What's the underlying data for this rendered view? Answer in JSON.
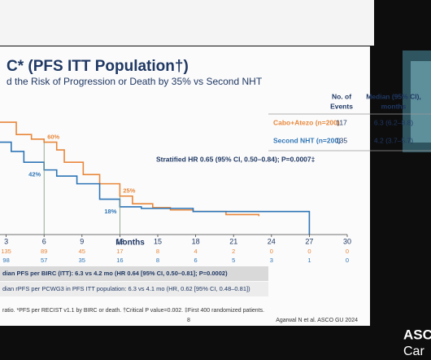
{
  "chart_data": {
    "type": "line",
    "step": true,
    "title": "C* (PFS ITT Population†)",
    "subtitle": "d the Risk of Progression or Death by 35% vs Second NHT",
    "xlabel": "Months",
    "xlim": [
      0,
      30
    ],
    "ylim": [
      0,
      100
    ],
    "xticks": [
      3,
      6,
      9,
      12,
      15,
      18,
      21,
      24,
      27,
      30
    ],
    "series": [
      {
        "name": "Cabo+Atezo (n=200)",
        "color": "#e8873a",
        "x": [
          0,
          3.8,
          5,
          6,
          7,
          7.6,
          9.1,
          10.4,
          12,
          13,
          14.6,
          16,
          17.8,
          20.4,
          23
        ],
        "values": [
          73,
          65,
          62,
          60,
          55,
          47,
          39,
          33,
          25,
          20,
          17.5,
          16,
          15,
          13,
          12
        ],
        "events": "117",
        "median": "6.3 (6.2–8.8)",
        "at_risk": [
          135,
          89,
          45,
          17,
          8,
          4,
          2,
          0,
          0,
          0
        ]
      },
      {
        "name": "Second NHT (n=200)",
        "color": "#2e75b6",
        "x": [
          0,
          3.4,
          4.4,
          6,
          7,
          8.6,
          10.4,
          12,
          13.7,
          17.8,
          27
        ],
        "values": [
          60,
          54,
          47,
          42,
          38,
          33,
          23,
          18,
          17,
          15,
          0
        ],
        "events": "135",
        "median": "4.2 (3.7–5.7)",
        "at_risk": [
          98,
          57,
          35,
          16,
          8,
          6,
          5,
          3,
          1,
          0
        ]
      }
    ],
    "annotations": [
      {
        "series": 0,
        "x": 6,
        "value": 60,
        "label": "60%"
      },
      {
        "series": 1,
        "x": 6,
        "value": 42,
        "label": "42%"
      },
      {
        "series": 0,
        "x": 12,
        "value": 25,
        "label": "25%"
      },
      {
        "series": 1,
        "x": 12,
        "value": 18,
        "label": "18%"
      }
    ],
    "table_headers": [
      "No. of",
      "Events",
      "Median (95% CI),",
      "months"
    ],
    "hr_text": "Stratified HR 0.65 (95% CI, 0.50–0.84); P=0.0007‡",
    "notes": [
      "dian PFS per BIRC (ITT): 6.3 vs 4.2 mo (HR 0.64 [95% CI, 0.50–0.81]; P=0.0002)",
      "dian rPFS per PCWG3 in PFS ITT population: 6.3 vs 4.1 mo (HR, 0.62 [95% CI, 0.48–0.81])"
    ],
    "footnote": "ratio. *PFS per RECIST v1.1 by BIRC or death. †Critical P value=0.002. ‡First 400 randomized patients.",
    "page": "8",
    "citation": "Agarwal N et al. ASCO GU 2024",
    "overlay": [
      "ASC",
      "Car"
    ]
  }
}
